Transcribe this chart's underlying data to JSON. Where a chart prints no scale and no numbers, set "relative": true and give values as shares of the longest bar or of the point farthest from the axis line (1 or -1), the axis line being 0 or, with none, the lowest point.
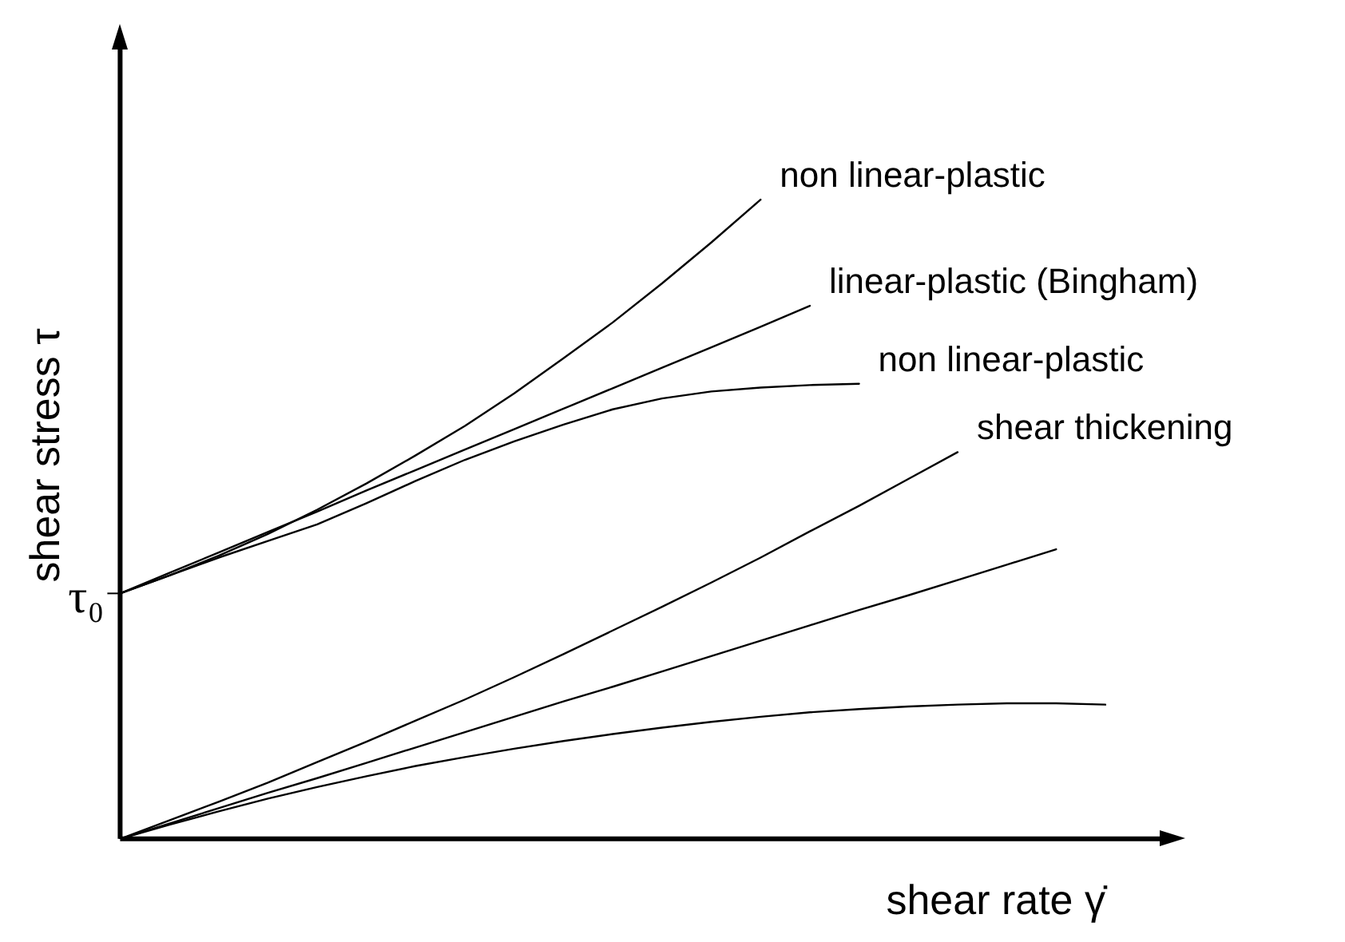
{
  "chart_data": {
    "type": "line",
    "relative": true,
    "xlabel": "shear rate γ̇",
    "ylabel": "shear stress τ",
    "legend": false,
    "grid": false,
    "marker": "none",
    "line_style": "solid",
    "annotations": [
      "τ₀"
    ],
    "categories": [
      null,
      null,
      null,
      null,
      null,
      null,
      null,
      null,
      null,
      null,
      null,
      null,
      null,
      null,
      null,
      null,
      null,
      null,
      null,
      null,
      null
    ],
    "series": [
      {
        "name": "non linear-plastic",
        "color": "#000000",
        "values": [
          0.384,
          0.412,
          0.443,
          0.477,
          0.515,
          0.556,
          0.6,
          0.646,
          0.697,
          0.752,
          0.808,
          0.869,
          0.933,
          1,
          null,
          null,
          null,
          null,
          null,
          null,
          null
        ]
      },
      {
        "name": "linear-plastic (Bingham)",
        "color": "#000000",
        "values": [
          0.384,
          0.416,
          0.448,
          0.48,
          0.512,
          0.545,
          0.577,
          0.609,
          0.641,
          0.673,
          0.705,
          0.737,
          0.769,
          0.801,
          0.834,
          null,
          null,
          null,
          null,
          null,
          null
        ]
      },
      {
        "name": "non linear-plastic",
        "color": "#000000",
        "values": [
          0.384,
          0.412,
          0.44,
          0.466,
          0.492,
          0.525,
          0.56,
          0.593,
          0.622,
          0.648,
          0.672,
          0.689,
          0.7,
          0.706,
          0.71,
          0.712,
          null,
          null,
          null,
          null,
          null
        ]
      },
      {
        "name": "shear thickening",
        "color": "#000000",
        "values": [
          0,
          0.029,
          0.058,
          0.088,
          0.12,
          0.152,
          0.185,
          0.218,
          0.253,
          0.289,
          0.326,
          0.363,
          0.401,
          0.44,
          0.481,
          0.521,
          0.563,
          0.605,
          null,
          null,
          null
        ]
      },
      {
        "color": "#000000",
        "values": [
          0,
          0.024,
          0.048,
          0.072,
          0.095,
          0.119,
          0.143,
          0.167,
          0.191,
          0.215,
          0.238,
          0.262,
          0.286,
          0.31,
          0.334,
          0.358,
          0.381,
          0.405,
          0.429,
          0.453,
          null
        ]
      },
      {
        "color": "#000000",
        "values": [
          0,
          0.022,
          0.043,
          0.063,
          0.081,
          0.098,
          0.114,
          0.128,
          0.141,
          0.153,
          0.164,
          0.174,
          0.183,
          0.191,
          0.198,
          0.203,
          0.207,
          0.21,
          0.212,
          0.212,
          0.21
        ]
      }
    ]
  }
}
